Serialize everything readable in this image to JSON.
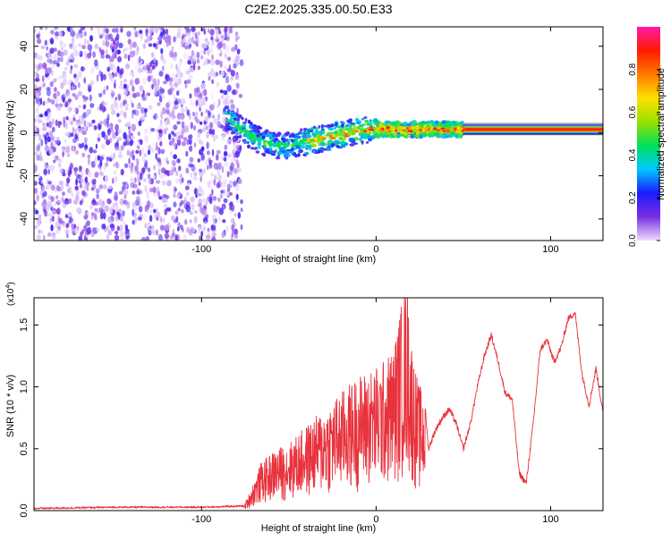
{
  "figure": {
    "title": "C2E2.2025.335.00.50.E33"
  },
  "chart_data": [
    {
      "type": "heatmap",
      "title": "C2E2.2025.335.00.50.E33",
      "xlabel": "Height of straight line (km)",
      "ylabel": "Frequency (Hz)",
      "xlim": [
        -196,
        130
      ],
      "ylim": [
        -50,
        49
      ],
      "xticks": [
        -100,
        0,
        100
      ],
      "yticks": [
        -40,
        -20,
        0,
        20,
        40
      ],
      "noise_region_x": [
        -196,
        -77
      ],
      "ridge": {
        "x": [
          -86,
          -80,
          -74,
          -68,
          -62,
          -56,
          -50,
          -44,
          -38,
          -32,
          -26,
          -20,
          -14,
          -8,
          -2,
          4,
          10,
          16,
          22,
          28,
          34,
          40,
          46,
          52,
          60,
          80,
          100,
          130
        ],
        "y": [
          8,
          3,
          0,
          -3,
          -5,
          -6,
          -6,
          -5,
          -4,
          -3,
          -2,
          -1,
          0,
          1,
          1.5,
          1.5,
          1.5,
          1.5,
          1.5,
          1.5,
          1.5,
          1.5,
          1.5,
          1.5,
          1.5,
          1.5,
          1.5,
          1.5
        ]
      },
      "colorbar": {
        "label": "Normalized spectral amplitude",
        "range": [
          0,
          1
        ],
        "ticks": [
          "0.0",
          "0.2",
          "0.4",
          "0.6",
          "0.8"
        ],
        "colors": [
          "#ecdcff",
          "#7a2fe0",
          "#1a1aff",
          "#00c8ff",
          "#00e05a",
          "#9ae000",
          "#ffe000",
          "#ff7a00",
          "#ff1a00",
          "#ff1aa8"
        ]
      }
    },
    {
      "type": "line",
      "xlabel": "Height of straight line (km)",
      "ylabel": "SNR (10 * v/v)",
      "yscale_label": "(x10",
      "yscale_exp": "4",
      "xlim": [
        -196,
        130
      ],
      "ylim": [
        0,
        1.72
      ],
      "xticks": [
        -100,
        0,
        100
      ],
      "yticks": [
        "0.0",
        "0.5",
        "1.0",
        "1.5"
      ],
      "series": [
        {
          "name": "SNR",
          "color": "#e8323c",
          "x": [
            -196,
            -150,
            -100,
            -76,
            -72,
            -66,
            -58,
            -50,
            -42,
            -34,
            -26,
            -18,
            -10,
            -2,
            4,
            10,
            14,
            16,
            18,
            20,
            22,
            24,
            26,
            28,
            30,
            34,
            38,
            42,
            46,
            50,
            54,
            58,
            62,
            66,
            70,
            74,
            78,
            82,
            86,
            90,
            94,
            98,
            102,
            106,
            110,
            114,
            118,
            122,
            126,
            130
          ],
          "y": [
            0.01,
            0.02,
            0.02,
            0.03,
            0.15,
            0.35,
            0.45,
            0.5,
            0.6,
            0.7,
            0.8,
            0.9,
            1.0,
            1.05,
            1.1,
            1.2,
            1.5,
            1.62,
            1.7,
            1.3,
            1.1,
            0.95,
            0.9,
            0.85,
            0.5,
            0.65,
            0.75,
            0.82,
            0.7,
            0.5,
            0.7,
            1.0,
            1.25,
            1.42,
            1.2,
            0.95,
            0.9,
            0.3,
            0.22,
            0.7,
            1.3,
            1.38,
            1.2,
            1.32,
            1.55,
            1.6,
            1.1,
            0.85,
            1.15,
            0.78
          ]
        }
      ]
    }
  ]
}
